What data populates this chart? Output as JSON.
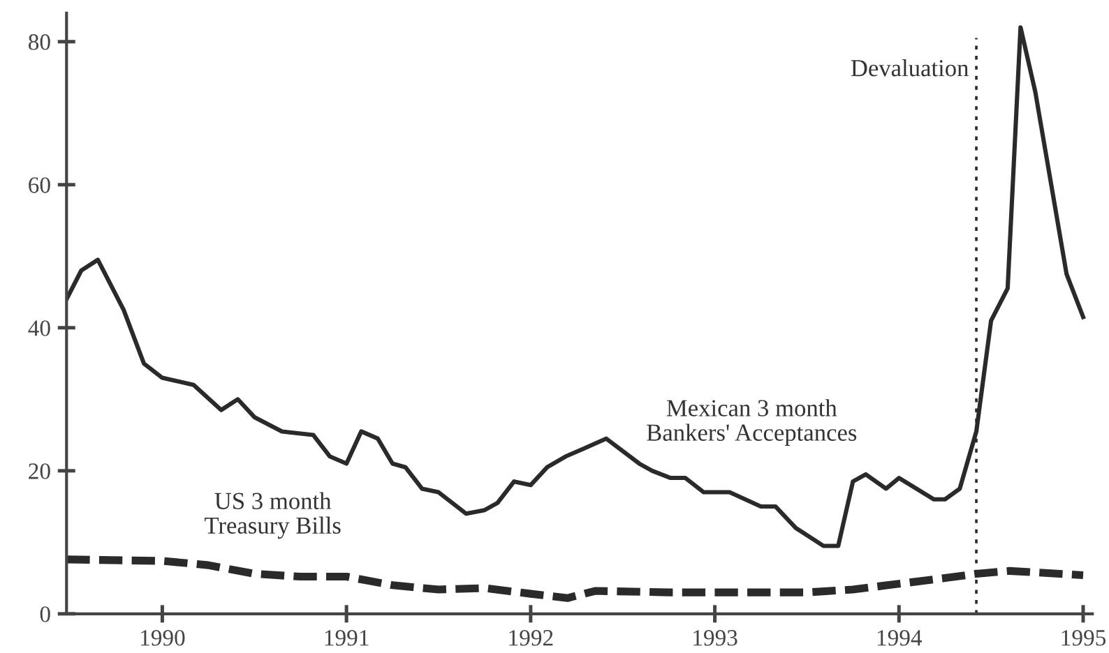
{
  "chart_data": {
    "type": "line",
    "series": [
      {
        "name": "Mexican 3 month\nBankers' Acceptances",
        "color": "#2a2a2a",
        "line_style": "solid",
        "x": [
          1989.48,
          1989.56,
          1989.65,
          1989.79,
          1989.9,
          1990.0,
          1990.17,
          1990.32,
          1990.41,
          1990.5,
          1990.65,
          1990.82,
          1990.91,
          1991.0,
          1991.08,
          1991.17,
          1991.25,
          1991.32,
          1991.41,
          1991.5,
          1991.65,
          1991.75,
          1991.82,
          1991.91,
          1992.0,
          1992.09,
          1992.19,
          1992.28,
          1992.41,
          1992.59,
          1992.66,
          1992.76,
          1992.84,
          1992.94,
          1993.08,
          1993.25,
          1993.33,
          1993.44,
          1993.59,
          1993.67,
          1993.75,
          1993.82,
          1993.93,
          1994.0,
          1994.19,
          1994.25,
          1994.33,
          1994.42,
          1994.5,
          1994.59,
          1994.66,
          1994.74,
          1994.91,
          1995.0
        ],
        "values": [
          44,
          48,
          49.5,
          42.5,
          35,
          33,
          32,
          28.5,
          30,
          27.5,
          25.5,
          25,
          22,
          21,
          25.5,
          24.5,
          21,
          20.5,
          17.5,
          17,
          14,
          14.5,
          15.5,
          18.5,
          18,
          20.5,
          22,
          23,
          24.5,
          21,
          20,
          19,
          19,
          17,
          17,
          15,
          15,
          12,
          9.5,
          9.5,
          18.5,
          19.5,
          17.5,
          19,
          16,
          16,
          17.5,
          25.5,
          41,
          45.5,
          82,
          73,
          47.5,
          41.5
        ]
      },
      {
        "name": "US 3 month\nTreasury Bills",
        "color": "#2a2a2a",
        "line_style": "dashed",
        "x": [
          1989.48,
          1990.0,
          1990.25,
          1990.5,
          1990.75,
          1991.0,
          1991.25,
          1991.5,
          1991.75,
          1992.0,
          1992.2,
          1992.35,
          1992.75,
          1993.0,
          1993.5,
          1993.75,
          1994.0,
          1994.25,
          1994.42,
          1994.6,
          1995.0
        ],
        "values": [
          7.6,
          7.4,
          6.8,
          5.6,
          5.2,
          5.2,
          4.0,
          3.4,
          3.6,
          2.8,
          2.2,
          3.2,
          3.0,
          3.0,
          3.0,
          3.4,
          4.2,
          5.0,
          5.6,
          6.0,
          5.4
        ]
      }
    ],
    "xlim": [
      1989.48,
      1995.05
    ],
    "ylim": [
      0,
      84
    ],
    "xticks": [
      1990,
      1991,
      1992,
      1993,
      1994,
      1995
    ],
    "yticks": [
      0,
      20,
      40,
      60,
      80
    ],
    "ref_lines": [
      {
        "axis": "x",
        "value": 1994.42,
        "label": "Devaluation",
        "line_style": "dotted",
        "color": "#2a2a2a"
      }
    ],
    "grid": false,
    "legend": false,
    "marker": "none"
  }
}
